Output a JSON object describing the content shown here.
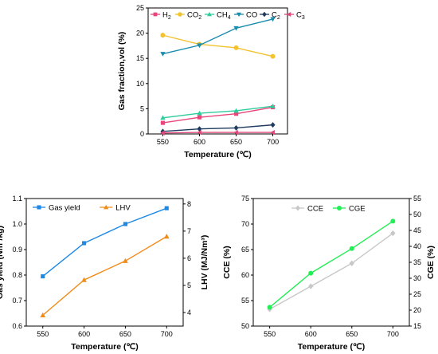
{
  "chart_data": [
    {
      "type": "line",
      "x": [
        550,
        600,
        650,
        700
      ],
      "xlabel": "Temperature (℃)",
      "ylabel": "Gas fraction,vol (%)",
      "ylim": [
        0,
        25
      ],
      "xticks": [
        "550",
        "600",
        "650",
        "700"
      ],
      "yticks": [
        "0",
        "5",
        "10",
        "15",
        "20",
        "25"
      ],
      "legend_position": "top",
      "series": [
        {
          "name": "H2",
          "label_main": "H",
          "label_sub": "2",
          "color": "#e8457a",
          "marker": "square",
          "values": [
            2.2,
            3.3,
            4.0,
            5.3
          ]
        },
        {
          "name": "CO2",
          "label_main": "CO",
          "label_sub": "2",
          "color": "#f2c230",
          "marker": "circle",
          "values": [
            19.6,
            17.8,
            17.1,
            15.4
          ]
        },
        {
          "name": "CH4",
          "label_main": "CH",
          "label_sub": "4",
          "color": "#2ecc9b",
          "marker": "triangle-up",
          "values": [
            3.2,
            4.1,
            4.6,
            5.5
          ]
        },
        {
          "name": "CO",
          "label_main": "CO",
          "label_sub": "",
          "color": "#1a8cad",
          "marker": "triangle-down",
          "values": [
            15.9,
            17.6,
            21.0,
            22.8
          ]
        },
        {
          "name": "C2",
          "label_main": "C",
          "label_sub": "2",
          "color": "#1f3a5f",
          "marker": "diamond",
          "values": [
            0.5,
            1.0,
            1.2,
            1.8
          ]
        },
        {
          "name": "C3",
          "label_main": "C",
          "label_sub": "3",
          "color": "#e0477a",
          "marker": "triangle-left",
          "values": [
            0.2,
            0.3,
            0.3,
            0.3
          ]
        }
      ]
    },
    {
      "type": "line",
      "x": [
        550,
        600,
        650,
        700
      ],
      "xlabel": "Temperature (℃)",
      "ylabel_left": "Gas yield (Nm³/kg)",
      "ylabel_right": "LHV (MJ/Nm³)",
      "ylim_left": [
        0.6,
        1.1
      ],
      "ylim_right": [
        3.5,
        8.2
      ],
      "xticks": [
        "550",
        "600",
        "650",
        "700"
      ],
      "yticks_left": [
        "0.6",
        "0.7",
        "0.8",
        "0.9",
        "1.0",
        "1.1"
      ],
      "yticks_right": [
        "4",
        "5",
        "6",
        "7",
        "8"
      ],
      "legend_position": "top-left",
      "series": [
        {
          "name": "Gas yield",
          "axis": "left",
          "color": "#1e88e5",
          "marker": "square",
          "values": [
            0.795,
            0.925,
            1.0,
            1.062
          ]
        },
        {
          "name": "LHV",
          "axis": "right",
          "color": "#f08c1a",
          "marker": "triangle-up",
          "values": [
            3.9,
            5.2,
            5.9,
            6.8
          ]
        }
      ]
    },
    {
      "type": "line",
      "x": [
        550,
        600,
        650,
        700
      ],
      "xlabel": "Temperature (℃)",
      "ylabel_left": "CCE (%)",
      "ylabel_right": "CGE (%)",
      "ylim_left": [
        50,
        75
      ],
      "ylim_right": [
        15,
        55
      ],
      "xticks": [
        "550",
        "600",
        "650",
        "700"
      ],
      "yticks_left": [
        "50",
        "55",
        "60",
        "65",
        "70",
        "75"
      ],
      "yticks_right": [
        "15",
        "20",
        "25",
        "30",
        "35",
        "40",
        "45",
        "50",
        "55"
      ],
      "legend_position": "top-left",
      "series": [
        {
          "name": "CCE",
          "axis": "left",
          "color": "#c8c8c8",
          "marker": "diamond",
          "values": [
            53.3,
            57.8,
            62.3,
            68.2
          ]
        },
        {
          "name": "CGE",
          "axis": "right",
          "color": "#22ee55",
          "marker": "circle",
          "values": [
            20.9,
            31.6,
            39.3,
            47.9
          ]
        }
      ]
    }
  ]
}
